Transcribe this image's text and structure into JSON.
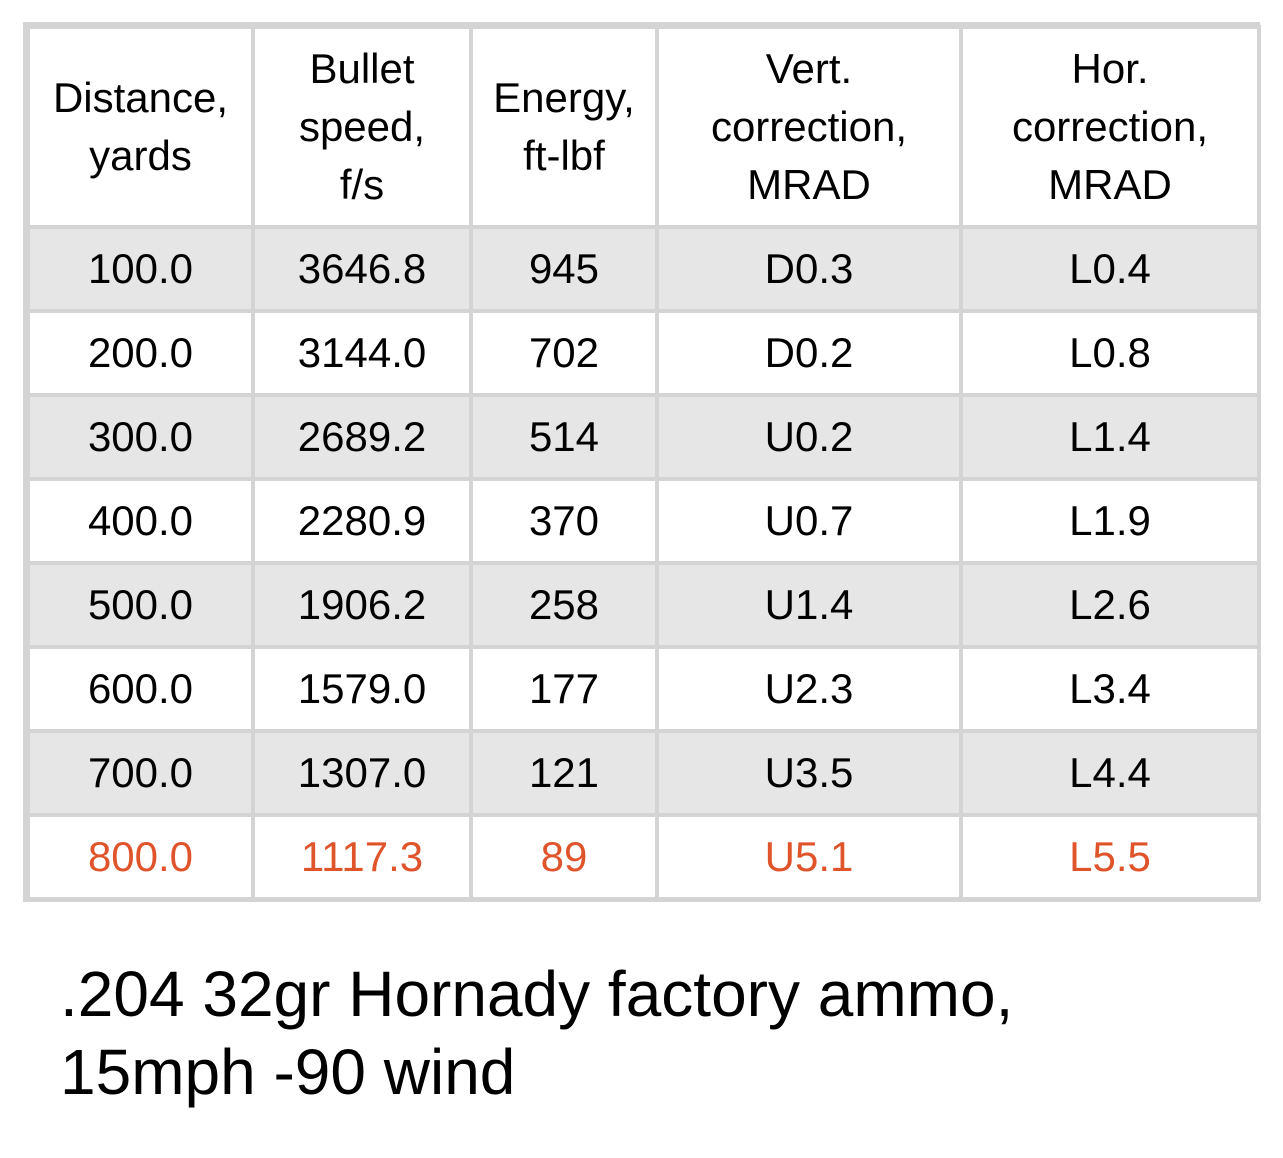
{
  "table": {
    "headers": [
      "Distance,\nyards",
      "Bullet\nspeed,\nf/s",
      "Energy,\nft-lbf",
      "Vert.\ncorrection,\nMRAD",
      "Hor.\ncorrection,\nMRAD"
    ],
    "rows": [
      [
        "100.0",
        "3646.8",
        "945",
        "D0.3",
        "L0.4"
      ],
      [
        "200.0",
        "3144.0",
        "702",
        "D0.2",
        "L0.8"
      ],
      [
        "300.0",
        "2689.2",
        "514",
        "U0.2",
        "L1.4"
      ],
      [
        "400.0",
        "2280.9",
        "370",
        "U0.7",
        "L1.9"
      ],
      [
        "500.0",
        "1906.2",
        "258",
        "U1.4",
        "L2.6"
      ],
      [
        "600.0",
        "1579.0",
        "177",
        "U2.3",
        "L3.4"
      ],
      [
        "700.0",
        "1307.0",
        "121",
        "U3.5",
        "L4.4"
      ],
      [
        "800.0",
        "1117.3",
        "89",
        "U5.1",
        "L5.5"
      ]
    ],
    "highlight_row_index": 7
  },
  "caption": {
    "line1": ".204 32gr Hornady factory ammo,",
    "line2": "15mph -90 wind"
  },
  "colors": {
    "highlight_text": "#e0542b",
    "border": "#d4d4d4",
    "stripe": "#e6e6e6"
  }
}
